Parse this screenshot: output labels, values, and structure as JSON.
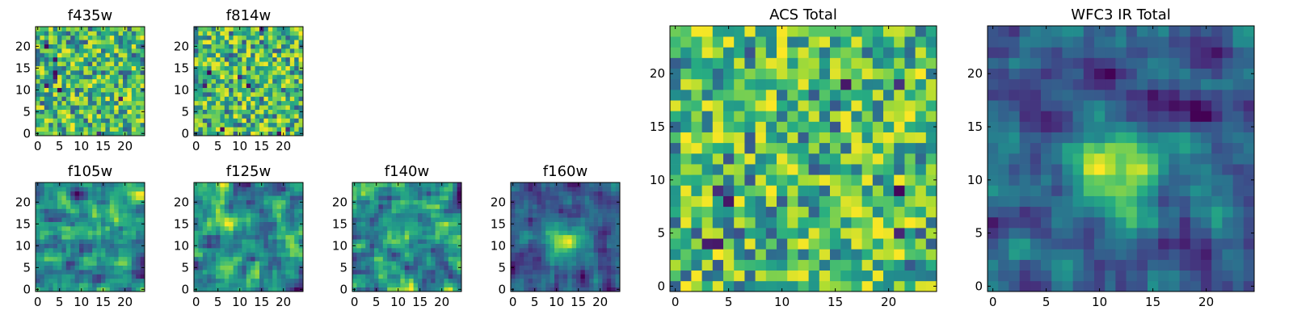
{
  "colors": {
    "colormap": "viridis",
    "axes_frame": "#000000",
    "background": "#ffffff"
  },
  "chart_data": [
    {
      "type": "heatmap",
      "title": "f435w",
      "colormap": "viridis",
      "grid_size": 25,
      "xlim": [
        -0.5,
        24.5
      ],
      "ylim": [
        -0.5,
        24.5
      ],
      "origin": "lower",
      "xticks": [
        0,
        5,
        10,
        15,
        20
      ],
      "yticks": [
        0,
        5,
        10,
        15,
        20
      ],
      "texture": "noise",
      "seed": 11
    },
    {
      "type": "heatmap",
      "title": "f814w",
      "colormap": "viridis",
      "grid_size": 25,
      "xlim": [
        -0.5,
        24.5
      ],
      "ylim": [
        -0.5,
        24.5
      ],
      "origin": "lower",
      "xticks": [
        0,
        5,
        10,
        15,
        20
      ],
      "yticks": [
        0,
        5,
        10,
        15,
        20
      ],
      "texture": "noise",
      "seed": 23
    },
    {
      "type": "heatmap",
      "title": "f105w",
      "colormap": "viridis",
      "grid_size": 25,
      "xlim": [
        -0.5,
        24.5
      ],
      "ylim": [
        -0.5,
        24.5
      ],
      "origin": "lower",
      "xticks": [
        0,
        5,
        10,
        15,
        20
      ],
      "yticks": [
        0,
        5,
        10,
        15,
        20
      ],
      "texture": "smooth",
      "seed": 37
    },
    {
      "type": "heatmap",
      "title": "f125w",
      "colormap": "viridis",
      "grid_size": 25,
      "xlim": [
        -0.5,
        24.5
      ],
      "ylim": [
        -0.5,
        24.5
      ],
      "origin": "lower",
      "xticks": [
        0,
        5,
        10,
        15,
        20
      ],
      "yticks": [
        0,
        5,
        10,
        15,
        20
      ],
      "texture": "smooth",
      "seed": 41
    },
    {
      "type": "heatmap",
      "title": "f140w",
      "colormap": "viridis",
      "grid_size": 25,
      "xlim": [
        -0.5,
        24.5
      ],
      "ylim": [
        -0.5,
        24.5
      ],
      "origin": "lower",
      "xticks": [
        0,
        5,
        10,
        15,
        20
      ],
      "yticks": [
        0,
        5,
        10,
        15,
        20
      ],
      "texture": "smooth",
      "seed": 53
    },
    {
      "type": "heatmap",
      "title": "f160w",
      "colormap": "viridis",
      "grid_size": 25,
      "xlim": [
        -0.5,
        24.5
      ],
      "ylim": [
        -0.5,
        24.5
      ],
      "origin": "lower",
      "xticks": [
        0,
        5,
        10,
        15,
        20
      ],
      "yticks": [
        0,
        5,
        10,
        15,
        20
      ],
      "texture": "blob",
      "seed": 67
    },
    {
      "type": "heatmap",
      "title": "ACS Total",
      "colormap": "viridis",
      "grid_size": 25,
      "xlim": [
        -0.5,
        24.5
      ],
      "ylim": [
        -0.5,
        24.5
      ],
      "origin": "lower",
      "xticks": [
        0,
        5,
        10,
        15,
        20
      ],
      "yticks": [
        0,
        5,
        10,
        15,
        20
      ],
      "texture": "noise",
      "seed": 79
    },
    {
      "type": "heatmap",
      "title": "WFC3 IR Total",
      "colormap": "viridis",
      "grid_size": 25,
      "xlim": [
        -0.5,
        24.5
      ],
      "ylim": [
        -0.5,
        24.5
      ],
      "origin": "lower",
      "xticks": [
        0,
        5,
        10,
        15,
        20
      ],
      "yticks": [
        0,
        5,
        10,
        15,
        20
      ],
      "texture": "blob",
      "seed": 97
    }
  ]
}
